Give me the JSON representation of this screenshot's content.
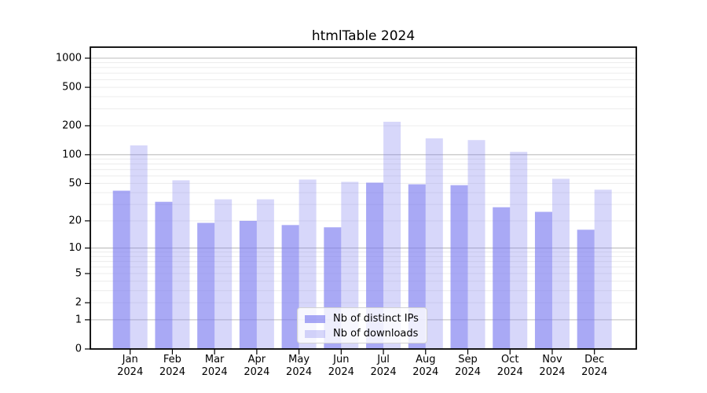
{
  "chart_data": {
    "type": "bar",
    "title": "htmlTable 2024",
    "categories": [
      "Jan 2024",
      "Feb 2024",
      "Mar 2024",
      "Apr 2024",
      "May 2024",
      "Jun 2024",
      "Jul 2024",
      "Aug 2024",
      "Sep 2024",
      "Oct 2024",
      "Nov 2024",
      "Dec 2024"
    ],
    "series": [
      {
        "name": "Nb of distinct IPs",
        "values": [
          42,
          32,
          19,
          20,
          18,
          17,
          51,
          49,
          48,
          28,
          25,
          16
        ],
        "color": "#7b7bf0",
        "opacity": 0.65
      },
      {
        "name": "Nb of downloads",
        "values": [
          125,
          54,
          34,
          34,
          55,
          52,
          220,
          148,
          142,
          107,
          56,
          43
        ],
        "color": "#7b7bf0",
        "opacity": 0.3
      }
    ],
    "yscale": "symlog",
    "ylim": [
      0,
      1000
    ],
    "y_ticks": [
      0,
      1,
      2,
      5,
      10,
      20,
      50,
      100,
      200,
      500,
      1000
    ],
    "y_major_gridlines": [
      1,
      10,
      100,
      1000
    ],
    "grid": "on",
    "legend_position": "bottom-center",
    "colors": {
      "grid_major": "#bdbdbd",
      "grid_minor": "#ececec",
      "frame": "#000000",
      "text": "#000000"
    }
  }
}
